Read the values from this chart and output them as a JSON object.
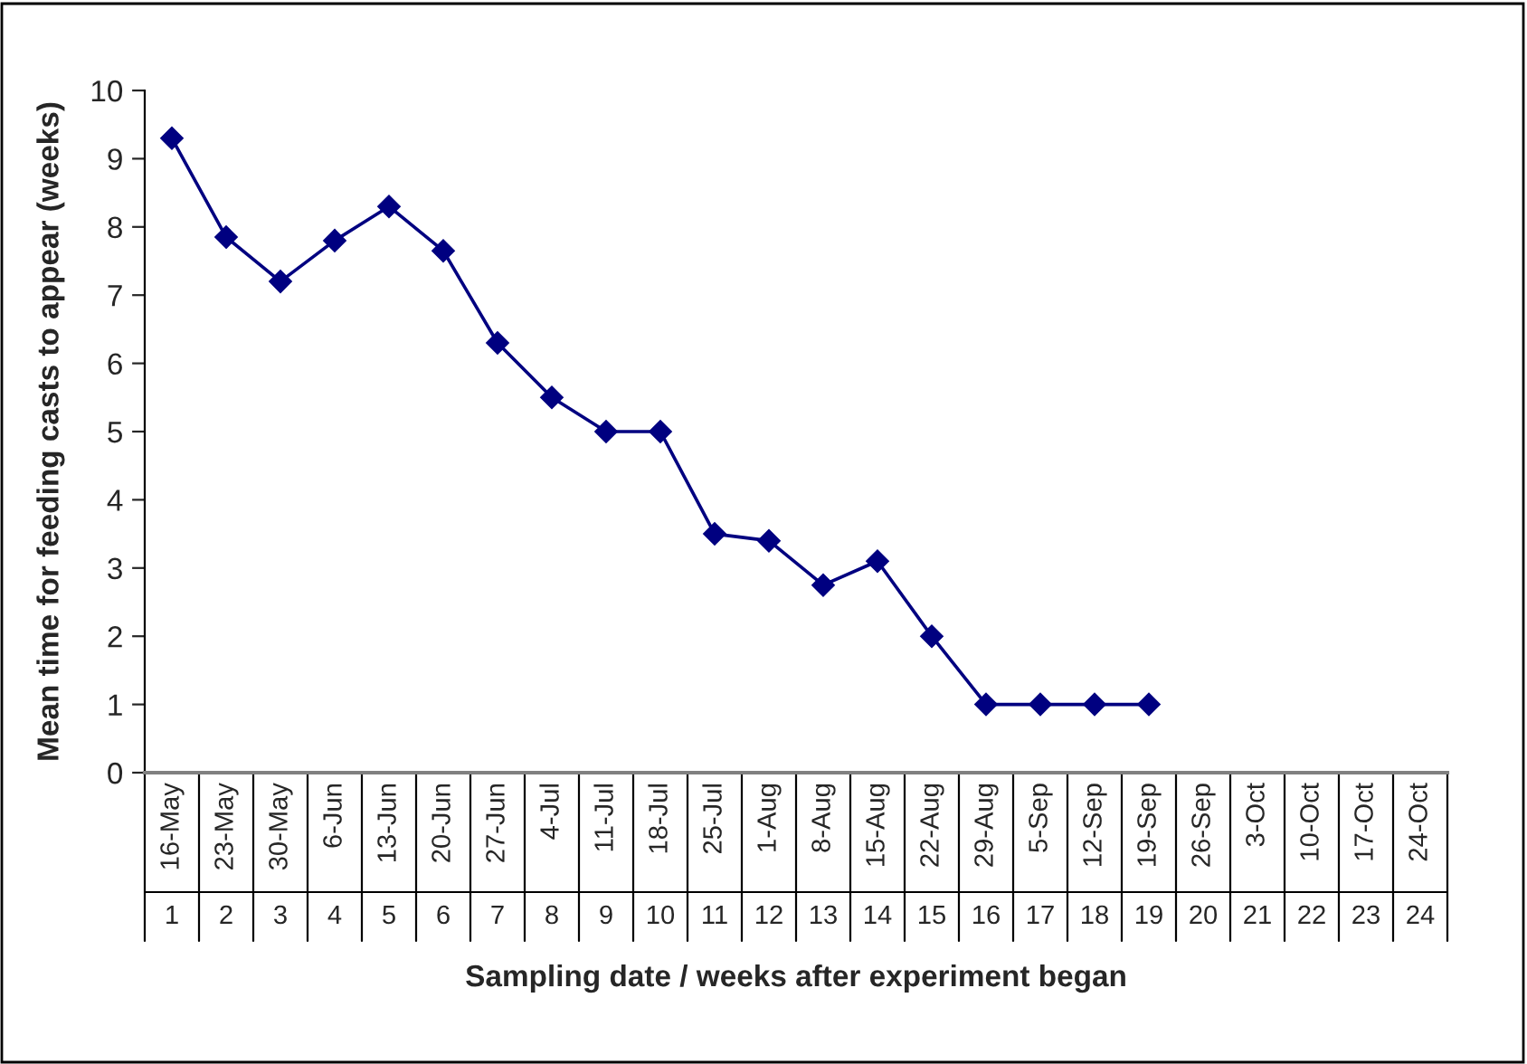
{
  "chart_data": {
    "type": "line",
    "xlabel": "Sampling date / weeks after experiment began",
    "ylabel": "Mean time for feeding casts to appear (weeks)",
    "categories": [
      "16-May",
      "23-May",
      "30-May",
      "6-Jun",
      "13-Jun",
      "20-Jun",
      "27-Jun",
      "4-Jul",
      "11-Jul",
      "18-Jul",
      "25-Jul",
      "1-Aug",
      "8-Aug",
      "15-Aug",
      "22-Aug",
      "29-Aug",
      "5-Sep",
      "12-Sep",
      "19-Sep",
      "26-Sep",
      "3-Oct",
      "10-Oct",
      "17-Oct",
      "24-Oct"
    ],
    "series": [
      {
        "color": "#000080",
        "values": [
          9.3,
          7.85,
          7.2,
          7.8,
          8.3,
          7.65,
          6.3,
          5.5,
          5.0,
          5.0,
          3.5,
          3.4,
          2.75,
          3.1,
          2.0,
          1.0,
          1.0,
          1.0,
          1.0,
          null,
          null,
          null,
          null,
          null
        ]
      }
    ],
    "x2lim": [
      0.5,
      24.5
    ],
    "x2ticks": [
      1,
      2,
      3,
      4,
      5,
      6,
      7,
      8,
      9,
      10,
      11,
      12,
      13,
      14,
      15,
      16,
      17,
      18,
      19,
      20,
      21,
      22,
      23,
      24
    ],
    "ylim": [
      0,
      10
    ],
    "yticks": [
      0,
      1,
      2,
      3,
      4,
      5,
      6,
      7,
      8,
      9,
      10
    ],
    "grid": false,
    "legend": false,
    "marker": "diamond",
    "line_style": "solid"
  }
}
